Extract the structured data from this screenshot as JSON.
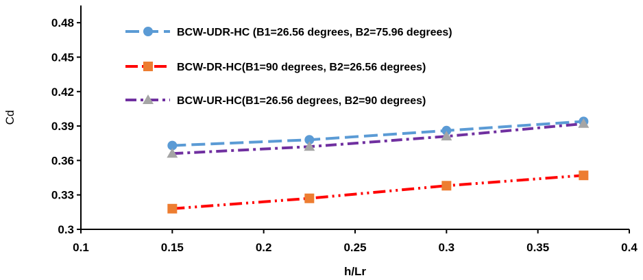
{
  "chart_data": {
    "type": "scatter",
    "xlabel": "h/Lr",
    "ylabel": "Cd",
    "xlim": [
      0.1,
      0.4
    ],
    "ylim": [
      0.3,
      0.495
    ],
    "x_ticks": [
      "0.1",
      "0.15",
      "0.2",
      "0.25",
      "0.3",
      "0.35",
      "0.4"
    ],
    "y_ticks": [
      "0.3",
      "0.33",
      "0.36",
      "0.39",
      "0.42",
      "0.45",
      "0.48"
    ],
    "grid": false,
    "legend_position": "top",
    "series": [
      {
        "name": "BCW-UDR-HC (B1=26.56 degrees, B2=75.96 degrees)",
        "color": "#5B9BD5",
        "marker": "circle",
        "line_style": "dashed",
        "marker_color": "#5B9BD5",
        "x": [
          0.15,
          0.225,
          0.3,
          0.375
        ],
        "y": [
          0.373,
          0.378,
          0.386,
          0.394
        ]
      },
      {
        "name": "BCW-DR-HC(B1=90 degrees, B2=26.56 degrees)",
        "color": "#FF0000",
        "marker": "square",
        "line_style": "dash-dot-dot",
        "marker_color": "#ED7D31",
        "x": [
          0.15,
          0.225,
          0.3,
          0.375
        ],
        "y": [
          0.318,
          0.327,
          0.338,
          0.347
        ]
      },
      {
        "name": "BCW-UR-HC(B1=26.56 degrees, B2=90 degrees)",
        "color": "#7030A0",
        "marker": "triangle",
        "line_style": "dash-dot",
        "marker_color": "#A5A5A5",
        "x": [
          0.15,
          0.225,
          0.3,
          0.375
        ],
        "y": [
          0.366,
          0.372,
          0.381,
          0.392
        ]
      }
    ]
  }
}
